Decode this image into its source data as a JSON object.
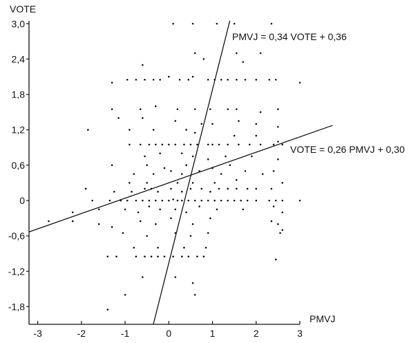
{
  "chart_data": {
    "type": "scatter",
    "title": "",
    "xlabel": "PMVJ",
    "ylabel": "VOTE",
    "xlim": [
      -3.2,
      3.0
    ],
    "ylim": [
      -2.1,
      3.05
    ],
    "grid": false,
    "x_ticks": [
      -3,
      -2,
      -1,
      0,
      1,
      2,
      3
    ],
    "x_tick_labels": [
      "-3",
      "-2",
      "-1",
      "0",
      "1",
      "2",
      "3"
    ],
    "y_ticks": [
      3.0,
      2.4,
      1.8,
      1.2,
      0.6,
      0,
      -0.6,
      -1.2,
      -1.8
    ],
    "y_tick_labels": [
      "3,0",
      "2,4",
      "1,8",
      "1,2",
      "0,6",
      "0",
      "-0,6",
      "-1,2",
      "-1,8"
    ],
    "regression_lines": [
      {
        "equation": "PMVJ = 0,34 VOTE + 0,36",
        "slope_pmvj_per_vote": 0.34,
        "intercept": 0.36
      },
      {
        "equation": "VOTE = 0,26 PMVJ + 0,30",
        "slope_vote_per_pmvj": 0.26,
        "intercept": 0.3
      }
    ],
    "points": [
      {
        "x": 0.55,
        "y": 3.0
      },
      {
        "x": 1.1,
        "y": 3.0
      },
      {
        "x": 1.5,
        "y": 3.0
      },
      {
        "x": 2.35,
        "y": 3.0
      },
      {
        "x": 0.1,
        "y": 3.0
      },
      {
        "x": 0.6,
        "y": 2.5
      },
      {
        "x": 1.55,
        "y": 2.5
      },
      {
        "x": 2.1,
        "y": 2.5
      },
      {
        "x": -0.6,
        "y": 2.3
      },
      {
        "x": 0.8,
        "y": 2.4
      },
      {
        "x": 1.7,
        "y": 2.35
      },
      {
        "x": -1.3,
        "y": 2.0
      },
      {
        "x": -0.95,
        "y": 2.05
      },
      {
        "x": -0.75,
        "y": 2.05
      },
      {
        "x": -0.55,
        "y": 2.05
      },
      {
        "x": -0.35,
        "y": 2.05
      },
      {
        "x": -0.2,
        "y": 2.05
      },
      {
        "x": 0.0,
        "y": 2.1
      },
      {
        "x": 0.25,
        "y": 2.05
      },
      {
        "x": 0.45,
        "y": 2.05
      },
      {
        "x": 0.55,
        "y": 2.1
      },
      {
        "x": 0.9,
        "y": 2.05
      },
      {
        "x": 1.05,
        "y": 2.05
      },
      {
        "x": 1.2,
        "y": 2.05
      },
      {
        "x": 1.35,
        "y": 2.05
      },
      {
        "x": 1.55,
        "y": 2.05
      },
      {
        "x": 1.75,
        "y": 2.05
      },
      {
        "x": 2.0,
        "y": 2.05
      },
      {
        "x": 2.3,
        "y": 2.05
      },
      {
        "x": 2.45,
        "y": 2.05
      },
      {
        "x": 3.0,
        "y": 2.0
      },
      {
        "x": -1.3,
        "y": 1.55
      },
      {
        "x": -0.65,
        "y": 1.55
      },
      {
        "x": -0.3,
        "y": 1.6
      },
      {
        "x": 0.2,
        "y": 1.55
      },
      {
        "x": 0.6,
        "y": 1.55
      },
      {
        "x": 0.95,
        "y": 1.55
      },
      {
        "x": 1.35,
        "y": 1.55
      },
      {
        "x": 1.55,
        "y": 1.55
      },
      {
        "x": 2.1,
        "y": 1.5
      },
      {
        "x": 2.5,
        "y": 1.55
      },
      {
        "x": -1.15,
        "y": 1.4
      },
      {
        "x": -0.6,
        "y": 1.4
      },
      {
        "x": 0.15,
        "y": 1.35
      },
      {
        "x": 0.75,
        "y": 1.3
      },
      {
        "x": 1.0,
        "y": 1.3
      },
      {
        "x": 1.6,
        "y": 1.35
      },
      {
        "x": 2.0,
        "y": 1.3
      },
      {
        "x": 2.5,
        "y": 1.25
      },
      {
        "x": -1.85,
        "y": 1.2
      },
      {
        "x": -0.9,
        "y": 1.2
      },
      {
        "x": -0.35,
        "y": 1.2
      },
      {
        "x": 0.4,
        "y": 1.2
      },
      {
        "x": 0.6,
        "y": 1.15
      },
      {
        "x": 1.5,
        "y": 1.1
      },
      {
        "x": 2.0,
        "y": 1.1
      },
      {
        "x": 2.5,
        "y": 1.0
      },
      {
        "x": -0.9,
        "y": 0.95
      },
      {
        "x": -0.65,
        "y": 0.95
      },
      {
        "x": -0.45,
        "y": 0.95
      },
      {
        "x": -0.3,
        "y": 0.95
      },
      {
        "x": -0.15,
        "y": 0.95
      },
      {
        "x": 0.0,
        "y": 0.95
      },
      {
        "x": 0.15,
        "y": 0.95
      },
      {
        "x": 0.35,
        "y": 0.95
      },
      {
        "x": 0.5,
        "y": 0.95
      },
      {
        "x": 0.65,
        "y": 0.95
      },
      {
        "x": 0.9,
        "y": 0.95
      },
      {
        "x": 1.0,
        "y": 0.95
      },
      {
        "x": 1.15,
        "y": 0.95
      },
      {
        "x": 1.35,
        "y": 0.95
      },
      {
        "x": 1.6,
        "y": 0.95
      },
      {
        "x": 1.85,
        "y": 0.95
      },
      {
        "x": 2.1,
        "y": 0.95
      },
      {
        "x": 2.4,
        "y": 0.95
      },
      {
        "x": 2.6,
        "y": 0.95
      },
      {
        "x": -0.55,
        "y": 0.75
      },
      {
        "x": -0.2,
        "y": 0.8
      },
      {
        "x": 0.3,
        "y": 0.8
      },
      {
        "x": 0.55,
        "y": 0.75
      },
      {
        "x": 0.9,
        "y": 0.7
      },
      {
        "x": 1.3,
        "y": 0.75
      },
      {
        "x": 1.9,
        "y": 0.75
      },
      {
        "x": 2.5,
        "y": 0.7
      },
      {
        "x": -1.3,
        "y": 0.6
      },
      {
        "x": -0.5,
        "y": 0.6
      },
      {
        "x": -0.1,
        "y": 0.55
      },
      {
        "x": 0.4,
        "y": 0.6
      },
      {
        "x": 1.0,
        "y": 0.55
      },
      {
        "x": 1.4,
        "y": 0.6
      },
      {
        "x": -0.8,
        "y": 0.45
      },
      {
        "x": -0.35,
        "y": 0.45
      },
      {
        "x": 0.05,
        "y": 0.5
      },
      {
        "x": 0.3,
        "y": 0.45
      },
      {
        "x": 0.7,
        "y": 0.5
      },
      {
        "x": 1.2,
        "y": 0.45
      },
      {
        "x": 1.75,
        "y": 0.5
      },
      {
        "x": 2.15,
        "y": 0.45
      },
      {
        "x": 2.4,
        "y": 0.5
      },
      {
        "x": -0.9,
        "y": 0.3
      },
      {
        "x": -0.5,
        "y": 0.3
      },
      {
        "x": 0.2,
        "y": 0.3
      },
      {
        "x": 0.55,
        "y": 0.3
      },
      {
        "x": 1.05,
        "y": 0.3
      },
      {
        "x": 1.55,
        "y": 0.35
      },
      {
        "x": 2.6,
        "y": 0.3
      },
      {
        "x": -1.9,
        "y": 0.2
      },
      {
        "x": -1.25,
        "y": 0.15
      },
      {
        "x": -0.85,
        "y": 0.15
      },
      {
        "x": -0.55,
        "y": 0.2
      },
      {
        "x": -0.4,
        "y": 0.2
      },
      {
        "x": -0.25,
        "y": 0.15
      },
      {
        "x": 0.05,
        "y": 0.2
      },
      {
        "x": 0.3,
        "y": 0.15
      },
      {
        "x": 0.5,
        "y": 0.2
      },
      {
        "x": 0.75,
        "y": 0.2
      },
      {
        "x": 0.95,
        "y": 0.15
      },
      {
        "x": 1.15,
        "y": 0.2
      },
      {
        "x": 1.35,
        "y": 0.2
      },
      {
        "x": 1.55,
        "y": 0.2
      },
      {
        "x": 1.8,
        "y": 0.2
      },
      {
        "x": 2.0,
        "y": 0.2
      },
      {
        "x": 2.35,
        "y": 0.2
      },
      {
        "x": -1.75,
        "y": 0.0
      },
      {
        "x": -1.35,
        "y": 0.0
      },
      {
        "x": -1.1,
        "y": 0.0
      },
      {
        "x": -0.95,
        "y": 0.0
      },
      {
        "x": -0.75,
        "y": 0.0
      },
      {
        "x": -0.6,
        "y": 0.0
      },
      {
        "x": -0.45,
        "y": 0.0
      },
      {
        "x": -0.3,
        "y": 0.0
      },
      {
        "x": -0.15,
        "y": 0.0
      },
      {
        "x": 0.0,
        "y": 0.0
      },
      {
        "x": 0.1,
        "y": 0.02
      },
      {
        "x": 0.2,
        "y": 0.0
      },
      {
        "x": 0.3,
        "y": 0.0
      },
      {
        "x": 0.45,
        "y": 0.0
      },
      {
        "x": 0.6,
        "y": 0.0
      },
      {
        "x": 0.75,
        "y": 0.0
      },
      {
        "x": 0.9,
        "y": 0.0
      },
      {
        "x": 1.05,
        "y": 0.0
      },
      {
        "x": 1.2,
        "y": 0.0
      },
      {
        "x": 1.35,
        "y": 0.0
      },
      {
        "x": 1.5,
        "y": 0.0
      },
      {
        "x": 1.65,
        "y": 0.0
      },
      {
        "x": 1.8,
        "y": 0.0
      },
      {
        "x": 2.0,
        "y": 0.0
      },
      {
        "x": 2.3,
        "y": 0.0
      },
      {
        "x": 2.45,
        "y": 0.0
      },
      {
        "x": 2.6,
        "y": 0.0
      },
      {
        "x": 3.0,
        "y": 0.0
      },
      {
        "x": -2.2,
        "y": -0.2
      },
      {
        "x": -1.6,
        "y": -0.15
      },
      {
        "x": -1.0,
        "y": -0.15
      },
      {
        "x": -0.7,
        "y": -0.2
      },
      {
        "x": -0.45,
        "y": -0.1
      },
      {
        "x": -0.2,
        "y": -0.15
      },
      {
        "x": 0.15,
        "y": -0.15
      },
      {
        "x": 0.4,
        "y": -0.2
      },
      {
        "x": 0.7,
        "y": -0.1
      },
      {
        "x": 1.1,
        "y": -0.15
      },
      {
        "x": 1.7,
        "y": -0.15
      },
      {
        "x": 2.4,
        "y": -0.1
      },
      {
        "x": 2.6,
        "y": -0.2
      },
      {
        "x": -2.75,
        "y": -0.35
      },
      {
        "x": -2.2,
        "y": -0.35
      },
      {
        "x": -1.6,
        "y": -0.4
      },
      {
        "x": -1.3,
        "y": -0.45
      },
      {
        "x": -0.65,
        "y": -0.35
      },
      {
        "x": -0.3,
        "y": -0.4
      },
      {
        "x": 0.05,
        "y": -0.3
      },
      {
        "x": 0.55,
        "y": -0.4
      },
      {
        "x": 0.95,
        "y": -0.3
      },
      {
        "x": 2.35,
        "y": -0.35
      },
      {
        "x": 2.5,
        "y": -0.4
      },
      {
        "x": 2.6,
        "y": -0.5
      },
      {
        "x": -1.05,
        "y": -0.55
      },
      {
        "x": -0.5,
        "y": -0.6
      },
      {
        "x": 0.15,
        "y": -0.55
      },
      {
        "x": 0.5,
        "y": -0.6
      },
      {
        "x": 0.9,
        "y": -0.55
      },
      {
        "x": 2.55,
        "y": -0.55
      },
      {
        "x": -0.8,
        "y": -0.8
      },
      {
        "x": -0.25,
        "y": -0.8
      },
      {
        "x": 0.35,
        "y": -0.8
      },
      {
        "x": 0.85,
        "y": -0.8
      },
      {
        "x": -1.4,
        "y": -0.95
      },
      {
        "x": -1.2,
        "y": -0.95
      },
      {
        "x": -0.75,
        "y": -0.95
      },
      {
        "x": -0.55,
        "y": -0.95
      },
      {
        "x": -0.4,
        "y": -0.95
      },
      {
        "x": -0.25,
        "y": -0.95
      },
      {
        "x": -0.1,
        "y": -0.95
      },
      {
        "x": 0.1,
        "y": -0.95
      },
      {
        "x": 0.3,
        "y": -0.95
      },
      {
        "x": 0.45,
        "y": -0.95
      },
      {
        "x": 0.65,
        "y": -0.95
      },
      {
        "x": 0.8,
        "y": -0.95
      },
      {
        "x": 2.45,
        "y": -1.0
      },
      {
        "x": -0.6,
        "y": -1.3
      },
      {
        "x": 0.15,
        "y": -1.3
      },
      {
        "x": 0.55,
        "y": -1.4
      },
      {
        "x": -1.0,
        "y": -1.6
      },
      {
        "x": 0.6,
        "y": -1.6
      },
      {
        "x": -1.4,
        "y": -1.85
      }
    ]
  }
}
